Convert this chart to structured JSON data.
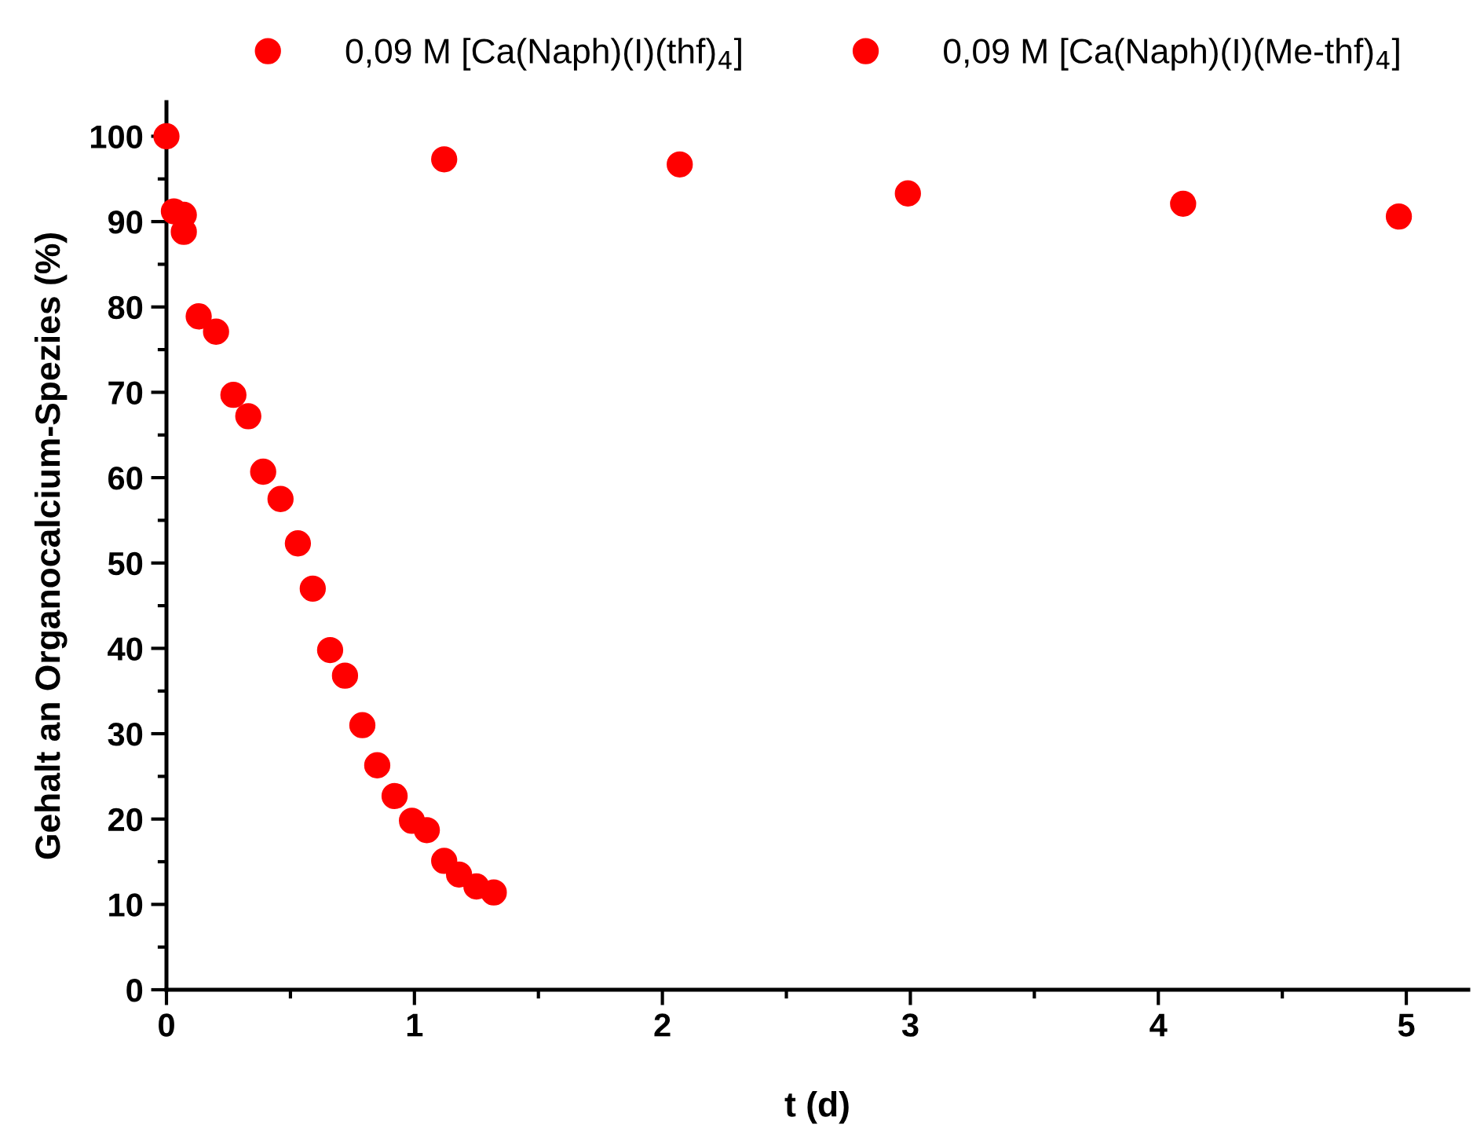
{
  "chart_data": {
    "type": "scatter",
    "xlabel": "t (d)",
    "ylabel": "Gehalt an Organocalcium-Spezies (%)",
    "xlim": [
      0,
      5.25
    ],
    "xticks": [
      0,
      1,
      2,
      3,
      4,
      5
    ],
    "ylim": [
      0,
      104
    ],
    "yticks": [
      0,
      10,
      20,
      30,
      40,
      50,
      60,
      70,
      80,
      90,
      100
    ],
    "grid": false,
    "legend": "top",
    "series": [
      {
        "name": "0,09 M [Ca(Naph)(I)(thf)$_{4}$]",
        "color": "#ff0000",
        "marker": "circle",
        "x": [
          0,
          1.12,
          2.07,
          2.99,
          4.1,
          4.97
        ],
        "values": [
          100,
          97.3,
          96.7,
          93.3,
          92.1,
          90.6
        ]
      },
      {
        "name": "0,09 M [Ca(Naph)(I)(Me-thf)$_{4}$]",
        "color": "#ff0000",
        "marker": "circle",
        "x": [
          0.03,
          0.07,
          0.07,
          0.13,
          0.2,
          0.27,
          0.33,
          0.39,
          0.46,
          0.53,
          0.59,
          0.66,
          0.72,
          0.79,
          0.85,
          0.92,
          0.99,
          1.05,
          1.12,
          1.18,
          1.25,
          1.32
        ],
        "values": [
          91.2,
          90.8,
          88.8,
          78.9,
          77.1,
          69.7,
          67.2,
          60.7,
          57.5,
          52.3,
          47.0,
          39.8,
          36.8,
          31.0,
          26.3,
          22.7,
          19.8,
          18.7,
          15.1,
          13.5,
          12.1,
          11.4
        ]
      }
    ]
  }
}
